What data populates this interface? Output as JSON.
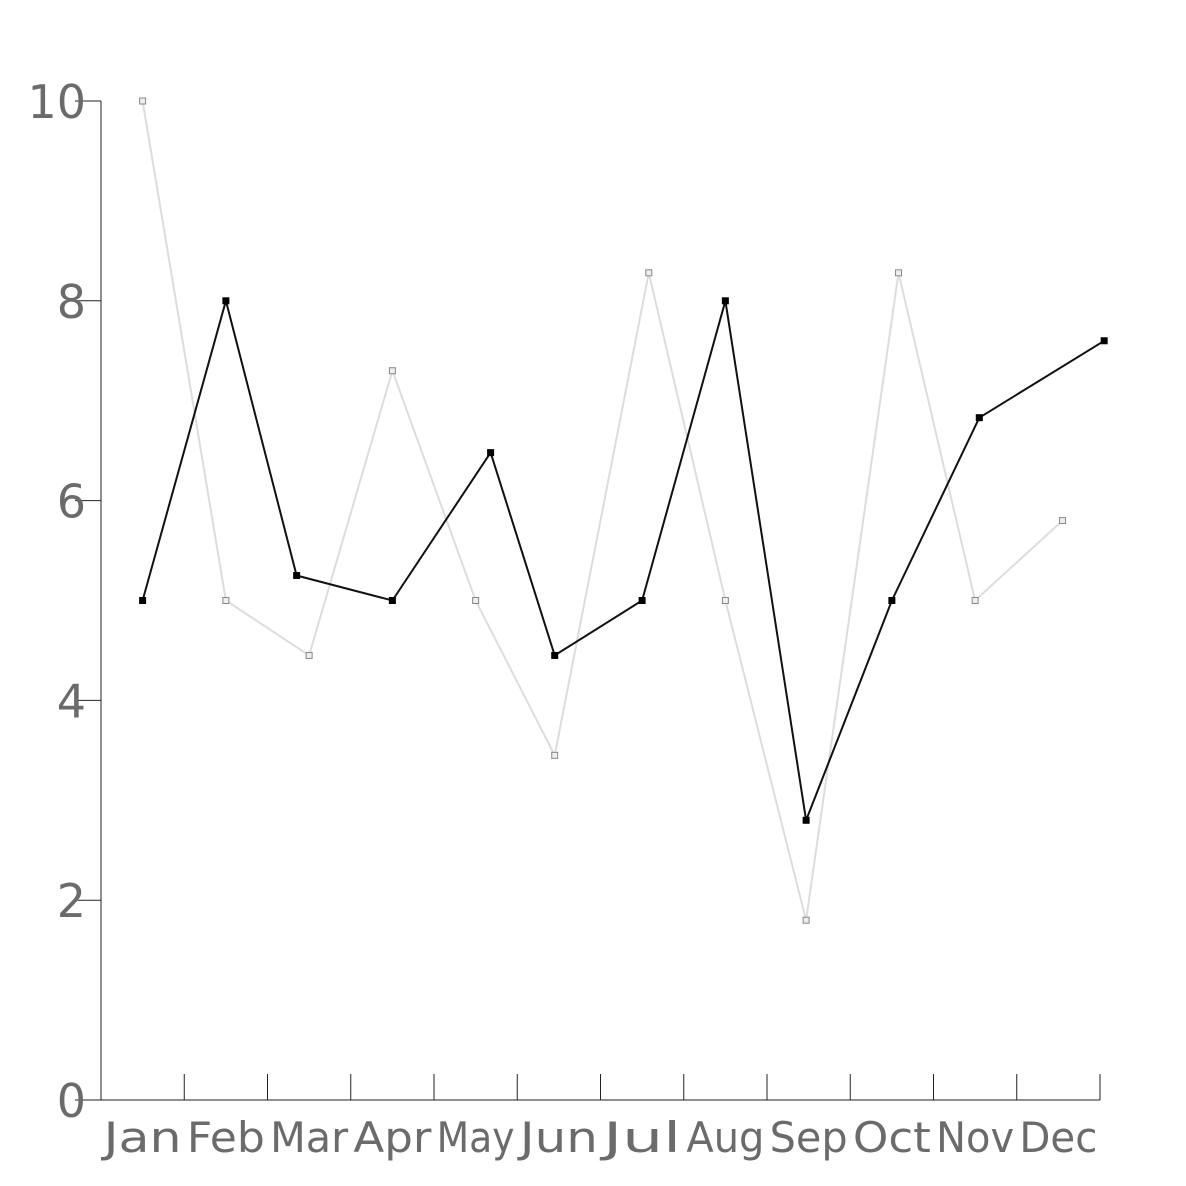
{
  "chart_data": {
    "type": "line",
    "categories": [
      "Jan",
      "Feb",
      "Mar",
      "Apr",
      "May",
      "Jun",
      "Jul",
      "Aug",
      "Sep",
      "Oct",
      "Nov",
      "Dec"
    ],
    "ylim": [
      0,
      10
    ],
    "yticks": [
      0,
      2,
      4,
      6,
      8,
      10
    ],
    "grid": false,
    "title": "",
    "xlabel": "",
    "ylabel": "",
    "series": [
      {
        "color": "#111111",
        "points": [
          [
            0.5,
            5
          ],
          [
            1.5,
            8
          ],
          [
            2.35,
            5.25
          ],
          [
            3.5,
            5
          ],
          [
            4.68,
            6.48
          ],
          [
            5.45,
            4.45
          ],
          [
            6.5,
            5
          ],
          [
            7.5,
            8
          ],
          [
            8.47,
            2.8
          ],
          [
            9.5,
            5
          ],
          [
            10.55,
            6.83
          ],
          [
            12.05,
            7.6
          ]
        ]
      },
      {
        "color": "#dddddd",
        "points": [
          [
            0.5,
            10
          ],
          [
            1.5,
            5
          ],
          [
            2.5,
            4.45
          ],
          [
            3.5,
            7.3
          ],
          [
            4.5,
            5
          ],
          [
            5.45,
            3.45
          ],
          [
            6.58,
            8.28
          ],
          [
            7.5,
            5
          ],
          [
            8.47,
            1.8
          ],
          [
            9.58,
            8.28
          ],
          [
            10.5,
            5
          ],
          [
            11.55,
            5.8
          ]
        ]
      }
    ]
  }
}
